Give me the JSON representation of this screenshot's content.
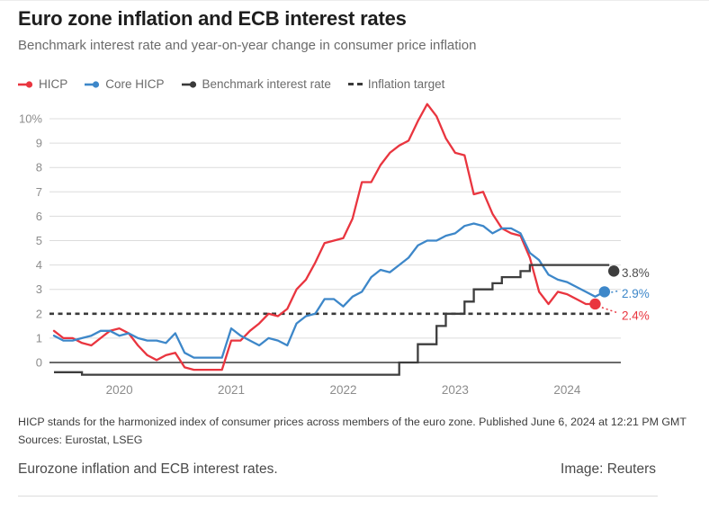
{
  "header": {
    "title": "Euro zone inflation and ECB interest rates",
    "subtitle": "Benchmark interest rate and year-on-year change in consumer price inflation"
  },
  "legend": [
    {
      "label": "HICP",
      "color": "#e9353f",
      "marker": "line-dot"
    },
    {
      "label": "Core HICP",
      "color": "#3d87c9",
      "marker": "line-dot"
    },
    {
      "label": "Benchmark interest rate",
      "color": "#3a3a3a",
      "marker": "line-dot"
    },
    {
      "label": "Inflation target",
      "color": "#3a3a3a",
      "marker": "dashes"
    }
  ],
  "chart_data": {
    "type": "line",
    "title": "Euro zone inflation and ECB interest rates",
    "subtitle": "Benchmark interest rate and year-on-year change in consumer price inflation",
    "x_unit": "month",
    "x_range": [
      "2019-06",
      "2024-06"
    ],
    "ylim": [
      -0.8,
      10.9
    ],
    "grid": true,
    "legend_position": "top",
    "y_ticks": [
      {
        "value": 0,
        "label": "0"
      },
      {
        "value": 1,
        "label": "1"
      },
      {
        "value": 2,
        "label": "2"
      },
      {
        "value": 3,
        "label": "3"
      },
      {
        "value": 4,
        "label": "4"
      },
      {
        "value": 5,
        "label": "5"
      },
      {
        "value": 6,
        "label": "6"
      },
      {
        "value": 7,
        "label": "7"
      },
      {
        "value": 8,
        "label": "8"
      },
      {
        "value": 9,
        "label": "9"
      },
      {
        "value": 10,
        "label": "10%"
      }
    ],
    "x_ticks": [
      {
        "date": "2020-01",
        "label": "2020"
      },
      {
        "date": "2021-01",
        "label": "2021"
      },
      {
        "date": "2022-01",
        "label": "2022"
      },
      {
        "date": "2023-01",
        "label": "2023"
      },
      {
        "date": "2024-01",
        "label": "2024"
      }
    ],
    "target_line": {
      "value": 2,
      "label": "Inflation target"
    },
    "series": [
      {
        "name": "HICP",
        "type": "line",
        "color": "#e9353f",
        "start": "2019-06",
        "end_label": "2.4%",
        "label_dy": 13,
        "values": [
          1.3,
          1.0,
          1.0,
          0.8,
          0.7,
          1.0,
          1.3,
          1.4,
          1.2,
          0.7,
          0.3,
          0.1,
          0.3,
          0.4,
          -0.2,
          -0.3,
          -0.3,
          -0.3,
          -0.3,
          0.9,
          0.9,
          1.3,
          1.6,
          2.0,
          1.9,
          2.2,
          3.0,
          3.4,
          4.1,
          4.9,
          5.0,
          5.1,
          5.9,
          7.4,
          7.4,
          8.1,
          8.6,
          8.9,
          9.1,
          9.9,
          10.6,
          10.1,
          9.2,
          8.6,
          8.5,
          6.9,
          7.0,
          6.1,
          5.5,
          5.3,
          5.2,
          4.3,
          2.9,
          2.4,
          2.9,
          2.8,
          2.6,
          2.4,
          2.4
        ]
      },
      {
        "name": "Core HICP",
        "type": "line",
        "color": "#3d87c9",
        "start": "2019-06",
        "end_label": "2.9%",
        "label_dy": 2,
        "values": [
          1.1,
          0.9,
          0.9,
          1.0,
          1.1,
          1.3,
          1.3,
          1.1,
          1.2,
          1.0,
          0.9,
          0.9,
          0.8,
          1.2,
          0.4,
          0.2,
          0.2,
          0.2,
          0.2,
          1.4,
          1.1,
          0.9,
          0.7,
          1.0,
          0.9,
          0.7,
          1.6,
          1.9,
          2.0,
          2.6,
          2.6,
          2.3,
          2.7,
          2.9,
          3.5,
          3.8,
          3.7,
          4.0,
          4.3,
          4.8,
          5.0,
          5.0,
          5.2,
          5.3,
          5.6,
          5.7,
          5.6,
          5.3,
          5.5,
          5.5,
          5.3,
          4.5,
          4.2,
          3.6,
          3.4,
          3.3,
          3.1,
          2.9,
          2.7,
          2.9
        ]
      },
      {
        "name": "Benchmark interest rate",
        "type": "step",
        "color": "#3d3d3d",
        "end_label": "3.8%",
        "label_dy": 2,
        "label_color": "#4d4d4d",
        "points": [
          [
            "2019-06",
            -0.4
          ],
          [
            "2019-09",
            -0.5
          ],
          [
            "2022-07",
            0.0
          ],
          [
            "2022-09",
            0.75
          ],
          [
            "2022-11",
            1.5
          ],
          [
            "2022-12",
            2.0
          ],
          [
            "2023-02",
            2.5
          ],
          [
            "2023-03",
            3.0
          ],
          [
            "2023-05",
            3.25
          ],
          [
            "2023-06",
            3.5
          ],
          [
            "2023-08",
            3.75
          ],
          [
            "2023-09",
            4.0
          ]
        ],
        "end_point": [
          "2024-06",
          3.75
        ]
      }
    ]
  },
  "footnote": {
    "line1": "HICP stands for the harmonized index of consumer prices across members of the euro zone. Published June 6, 2024 at 12:21 PM GMT",
    "line2": "Sources: Eurostat, LSEG"
  },
  "caption": {
    "text": "Eurozone inflation and ECB interest rates.",
    "credit": "Image: Reuters"
  }
}
